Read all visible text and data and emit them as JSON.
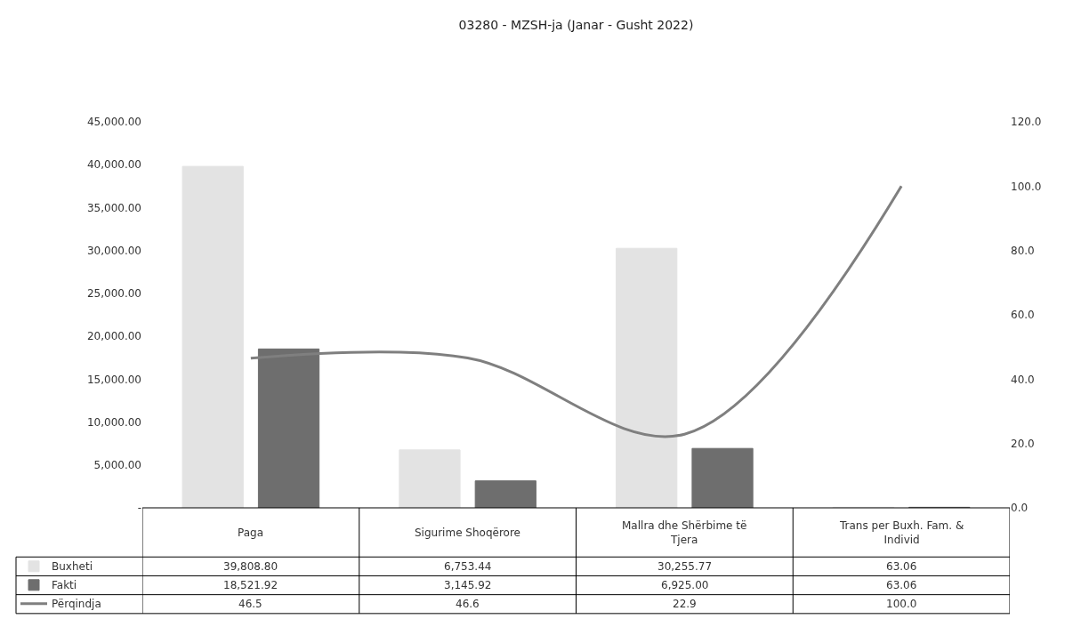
{
  "chart_data": {
    "type": "bar",
    "title": "03280 - MZSH-ja (Janar - Gusht 2022)",
    "categories": [
      "Paga",
      "Sigurime Shoqërore",
      "Mallra dhe Shërbime të Tjera",
      "Trans per Buxh. Fam. & Individ"
    ],
    "series": [
      {
        "name": "Buxheti",
        "color": "#e3e3e3",
        "values": [
          39808.8,
          6753.44,
          30255.77,
          63.06
        ],
        "value_labels": [
          "39,808.80",
          "6,753.44",
          "30,255.77",
          "63.06"
        ]
      },
      {
        "name": "Fakti",
        "color": "#6e6e6e",
        "values": [
          18521.92,
          3145.92,
          6925.0,
          63.06
        ],
        "value_labels": [
          "18,521.92",
          "3,145.92",
          "6,925.00",
          "63.06"
        ]
      },
      {
        "name": "Përqindja",
        "type": "line",
        "axis": "y2",
        "color": "#7f7f7f",
        "values": [
          46.5,
          46.6,
          22.9,
          100.0
        ],
        "value_labels": [
          "46.5",
          "46.6",
          "22.9",
          "100.0"
        ]
      }
    ],
    "ylim": [
      0,
      45000
    ],
    "yticks": [
      {
        "value": 0,
        "label": "-"
      },
      {
        "value": 5000,
        "label": "5,000.00"
      },
      {
        "value": 10000,
        "label": "10,000.00"
      },
      {
        "value": 15000,
        "label": "15,000.00"
      },
      {
        "value": 20000,
        "label": "20,000.00"
      },
      {
        "value": 25000,
        "label": "25,000.00"
      },
      {
        "value": 30000,
        "label": "30,000.00"
      },
      {
        "value": 35000,
        "label": "35,000.00"
      },
      {
        "value": 40000,
        "label": "40,000.00"
      },
      {
        "value": 45000,
        "label": "45,000.00"
      }
    ],
    "y2lim": [
      0,
      120
    ],
    "y2ticks": [
      {
        "value": 0,
        "label": "0.0"
      },
      {
        "value": 20,
        "label": "20.0"
      },
      {
        "value": 40,
        "label": "40.0"
      },
      {
        "value": 60,
        "label": "60.0"
      },
      {
        "value": 80,
        "label": "80.0"
      },
      {
        "value": 100,
        "label": "100.0"
      },
      {
        "value": 120,
        "label": "120.0"
      }
    ],
    "legend": "bottom left"
  }
}
